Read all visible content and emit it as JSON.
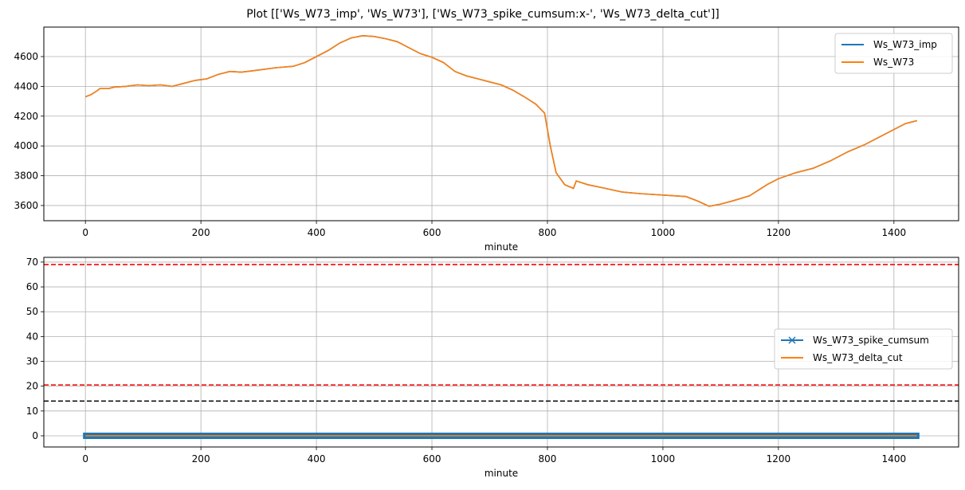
{
  "title": "Plot [['Ws_W73_imp', 'Ws_W73'], ['Ws_W73_spike_cumsum:x-', 'Ws_W73_delta_cut']]",
  "chart_data": [
    {
      "type": "line",
      "xlabel": "minute",
      "ylabel": "",
      "xlim": [
        -72,
        1512
      ],
      "ylim": [
        3498,
        4798
      ],
      "xticks": [
        0,
        200,
        400,
        600,
        800,
        1000,
        1200,
        1400
      ],
      "yticks": [
        3600,
        3800,
        4000,
        4200,
        4400,
        4600
      ],
      "grid": true,
      "legend": "top-right",
      "x": [
        0,
        10,
        20,
        25,
        40,
        50,
        70,
        90,
        110,
        130,
        150,
        170,
        190,
        210,
        230,
        250,
        270,
        290,
        310,
        330,
        360,
        380,
        400,
        420,
        440,
        460,
        480,
        500,
        520,
        540,
        560,
        580,
        600,
        620,
        640,
        660,
        680,
        700,
        720,
        740,
        760,
        780,
        795,
        805,
        815,
        830,
        845,
        850,
        870,
        900,
        930,
        960,
        1000,
        1040,
        1060,
        1080,
        1100,
        1120,
        1150,
        1180,
        1200,
        1230,
        1260,
        1290,
        1320,
        1350,
        1380,
        1400,
        1420,
        1440
      ],
      "series": [
        {
          "name": "Ws_W73_imp",
          "color": "#1f77b4",
          "values": [
            4330,
            4345,
            4370,
            4385,
            4385,
            4395,
            4400,
            4410,
            4405,
            4410,
            4400,
            4420,
            4440,
            4450,
            4480,
            4500,
            4495,
            4505,
            4515,
            4525,
            4535,
            4560,
            4600,
            4640,
            4690,
            4725,
            4740,
            4735,
            4720,
            4700,
            4660,
            4620,
            4595,
            4560,
            4500,
            4470,
            4450,
            4430,
            4410,
            4375,
            4330,
            4280,
            4220,
            4000,
            3820,
            3740,
            3715,
            3765,
            3740,
            3715,
            3690,
            3680,
            3670,
            3660,
            3630,
            3595,
            3610,
            3630,
            3665,
            3740,
            3780,
            3820,
            3850,
            3900,
            3960,
            4010,
            4070,
            4110,
            4150,
            4170
          ]
        },
        {
          "name": "Ws_W73",
          "color": "#ff7f0e",
          "values": [
            4330,
            4345,
            4370,
            4385,
            4385,
            4395,
            4400,
            4410,
            4405,
            4410,
            4400,
            4420,
            4440,
            4450,
            4480,
            4500,
            4495,
            4505,
            4515,
            4525,
            4535,
            4560,
            4600,
            4640,
            4690,
            4725,
            4740,
            4735,
            4720,
            4700,
            4660,
            4620,
            4595,
            4560,
            4500,
            4470,
            4450,
            4430,
            4410,
            4375,
            4330,
            4280,
            4220,
            4000,
            3820,
            3740,
            3715,
            3765,
            3740,
            3715,
            3690,
            3680,
            3670,
            3660,
            3630,
            3595,
            3610,
            3630,
            3665,
            3740,
            3780,
            3820,
            3850,
            3900,
            3960,
            4010,
            4070,
            4110,
            4150,
            4170
          ]
        }
      ]
    },
    {
      "type": "line",
      "xlabel": "minute",
      "ylabel": "",
      "xlim": [
        -72,
        1512
      ],
      "ylim": [
        -4.5,
        71.9
      ],
      "xticks": [
        0,
        200,
        400,
        600,
        800,
        1000,
        1200,
        1400
      ],
      "yticks": [
        0,
        10,
        20,
        30,
        40,
        50,
        60,
        70
      ],
      "grid": true,
      "legend": "center-right",
      "x_range": [
        0,
        1440
      ],
      "series": [
        {
          "name": "Ws_W73_spike_cumsum",
          "color": "#1f77b4",
          "marker": "x",
          "value": 0
        },
        {
          "name": "Ws_W73_delta_cut",
          "color": "#ff7f0e",
          "value": 0
        }
      ],
      "hlines": [
        {
          "y": 69,
          "color": "#ff0000",
          "style": "dashed"
        },
        {
          "y": 20.5,
          "color": "#ff0000",
          "style": "dashed"
        },
        {
          "y": 14,
          "color": "#000000",
          "style": "dashed"
        }
      ]
    }
  ]
}
